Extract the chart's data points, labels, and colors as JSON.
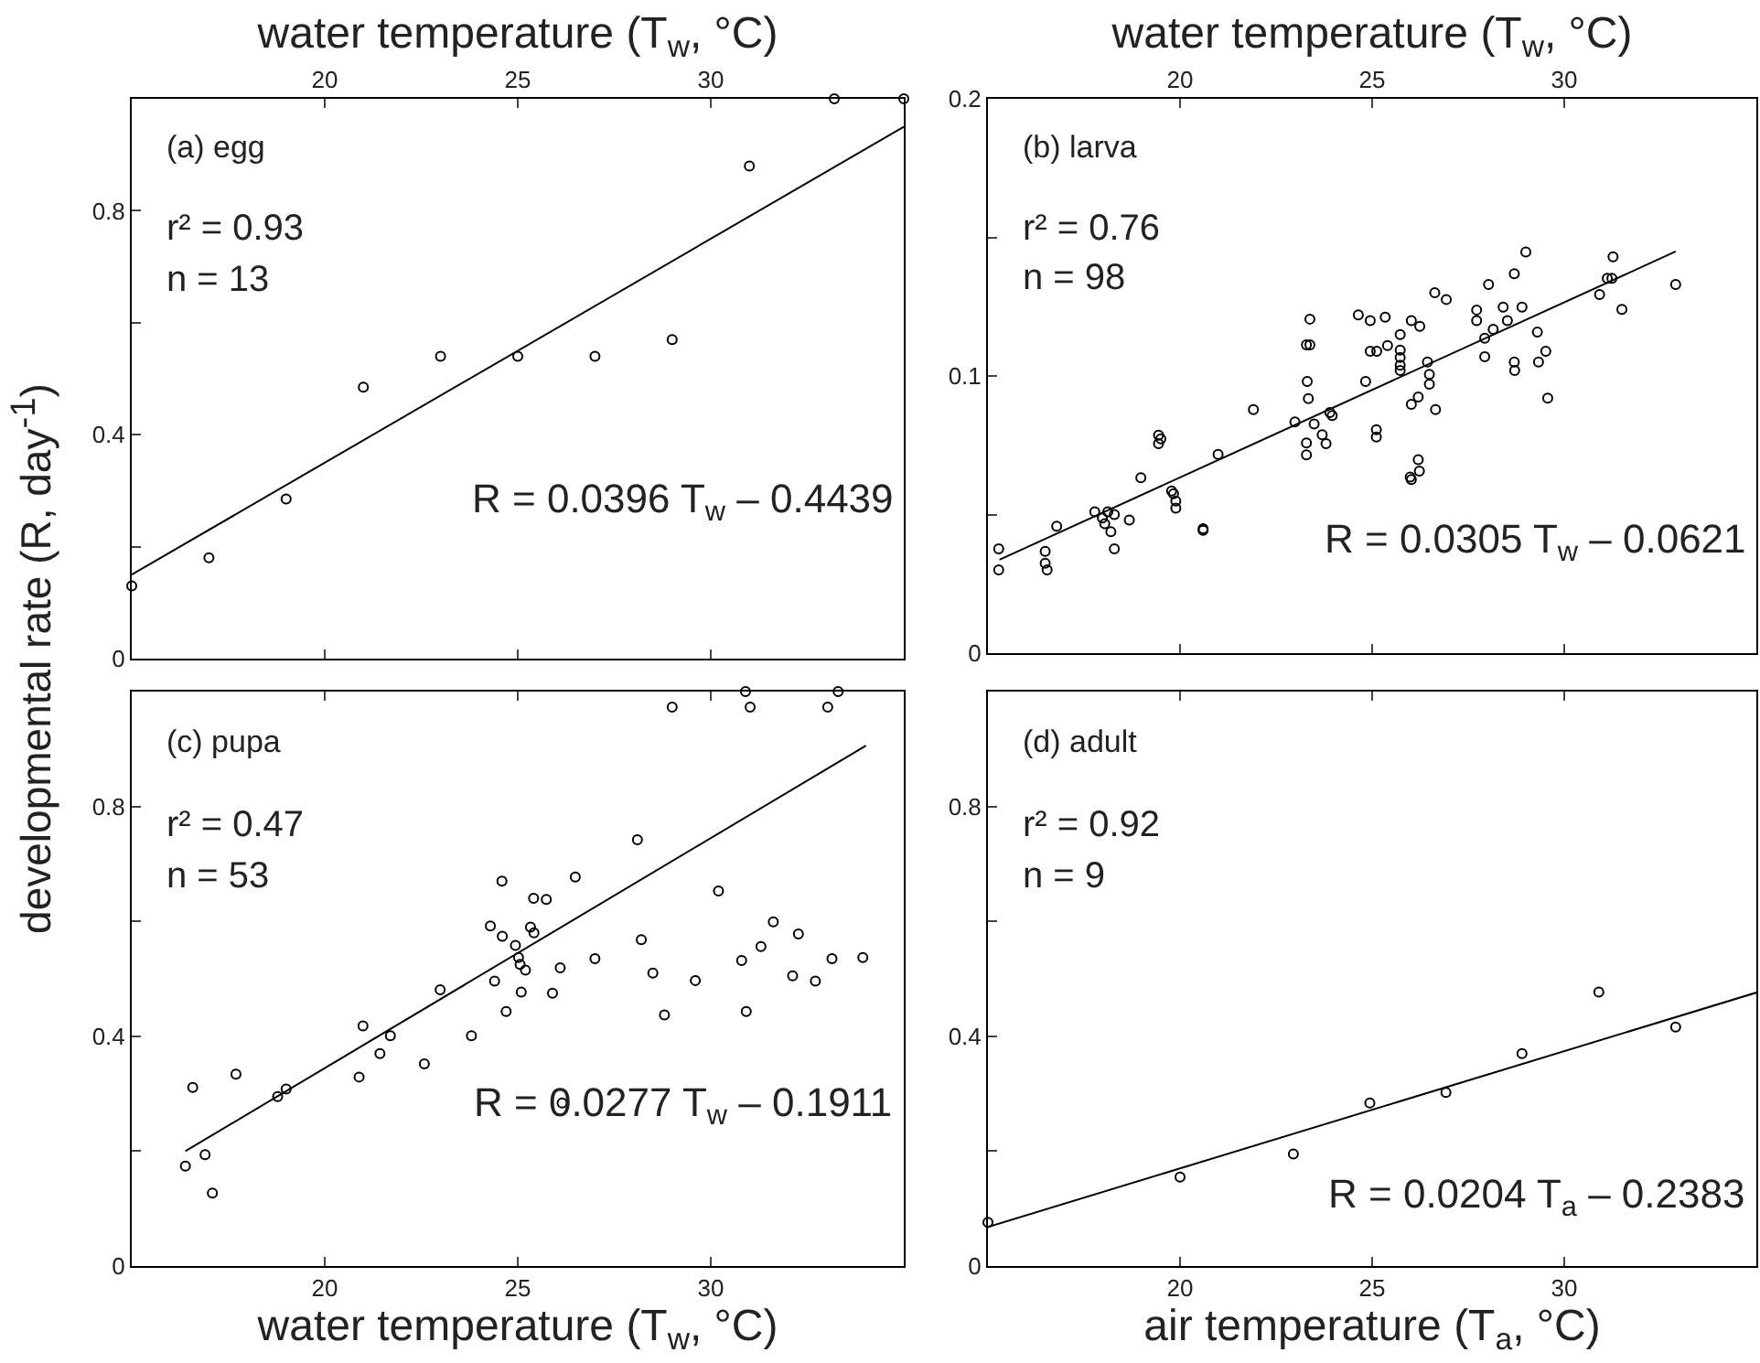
{
  "chart_data": [
    {
      "type": "scatter",
      "line_style": "solid",
      "grid": false,
      "xlabel": "water temperature (T$_{w}$, °C)",
      "ylabel": "developmental rate (R, day$^{-1}$)",
      "xlim": [
        15,
        35
      ],
      "xticks": [
        20,
        25,
        30
      ],
      "ylim": [
        0,
        1
      ],
      "yticks": [
        0,
        {
          "value": 0.2,
          "label": null
        },
        0.4,
        {
          "value": 0.6,
          "label": null
        },
        0.8
      ],
      "annotations": [
        "(a) egg",
        "r² = 0.93",
        "n = 13",
        "R = 0.0396 T$_{w}$ – 0.4439"
      ],
      "series": [
        {
          "type": "scatter",
          "marker": "circle",
          "color": "#000000",
          "x": [
            15,
            17,
            19,
            21,
            23,
            25,
            27,
            29,
            31,
            33.2,
            35
          ],
          "values": [
            0.13,
            0.18,
            0.285,
            0.485,
            0.54,
            0.54,
            0.54,
            0.57,
            0.88,
            1.0,
            1.0
          ]
        },
        {
          "type": "line",
          "color": "#000000",
          "x": [
            15,
            35
          ],
          "values": [
            0.15,
            0.95
          ]
        }
      ]
    },
    {
      "type": "scatter",
      "line_style": "solid",
      "grid": false,
      "xlabel": "water temperature (T$_{w}$, °C)",
      "xlim": [
        15,
        35
      ],
      "xticks": [
        20,
        25,
        30
      ],
      "ylim": [
        0,
        0.2
      ],
      "yticks": [
        0,
        {
          "value": 0.05,
          "label": null
        },
        0.1,
        {
          "value": 0.15,
          "label": null
        },
        0.2
      ],
      "annotations": [
        "(b) larva",
        "r² = 0.76",
        "n = 98",
        "R = 0.0305 T$_{w}$ – 0.0621"
      ],
      "series": [
        {
          "type": "scatter",
          "marker": "circle",
          "color": "#000000",
          "x": [
            15.28,
            15.28,
            16.49,
            16.49,
            16.54,
            16.79,
            17.78,
            17.98,
            18.04,
            18.12,
            18.2,
            18.29,
            18.29,
            18.68,
            18.98,
            19.44,
            19.44,
            19.5,
            19.78,
            19.89,
            19.89,
            19.83,
            20.6,
            20.6,
            20.99,
            21.91,
            22.99,
            23.29,
            23.38,
            23.38,
            23.31,
            23.34,
            23.29,
            23.29,
            23.49,
            23.7,
            23.8,
            23.9,
            23.96,
            24.64,
            24.83,
            24.95,
            24.95,
            25.12,
            25.11,
            25.11,
            25.34,
            25.4,
            25.73,
            25.73,
            25.73,
            25.73,
            25.73,
            26.02,
            26.02,
            25.99,
            26.02,
            26.2,
            26.2,
            26.23,
            26.24,
            26.44,
            26.49,
            26.49,
            26.65,
            26.63,
            26.93,
            27.72,
            27.72,
            27.93,
            27.93,
            28.03,
            28.15,
            28.41,
            28.52,
            28.7,
            28.7,
            28.71,
            28.9,
            29.0,
            29.3,
            29.33,
            29.52,
            29.57,
            30.92,
            31.12,
            31.24,
            31.27,
            31.5,
            32.9
          ],
          "values": [
            0.0376,
            0.03,
            0.0367,
            0.0324,
            0.03,
            0.0458,
            0.051,
            0.0488,
            0.0467,
            0.051,
            0.0438,
            0.05,
            0.0376,
            0.048,
            0.0633,
            0.0786,
            0.0756,
            0.0773,
            0.0585,
            0.0549,
            0.0523,
            0.0575,
            0.0449,
            0.0443,
            0.0717,
            0.0879,
            0.0834,
            0.1112,
            0.1112,
            0.1205,
            0.098,
            0.0918,
            0.0758,
            0.0715,
            0.0827,
            0.0788,
            0.0756,
            0.0868,
            0.0857,
            0.122,
            0.098,
            0.12,
            0.1089,
            0.1089,
            0.0806,
            0.078,
            0.1212,
            0.111,
            0.1149,
            0.1093,
            0.1067,
            0.1039,
            0.102,
            0.12,
            0.0898,
            0.0635,
            0.0626,
            0.0924,
            0.0698,
            0.0657,
            0.1179,
            0.105,
            0.1006,
            0.097,
            0.0879,
            0.13,
            0.1276,
            0.1238,
            0.12,
            0.1136,
            0.1069,
            0.133,
            0.1168,
            0.1248,
            0.12,
            0.1369,
            0.105,
            0.102,
            0.1248,
            0.1447,
            0.1158,
            0.105,
            0.1089,
            0.092,
            0.1294,
            0.1352,
            0.1352,
            0.143,
            0.124,
            0.133
          ]
        },
        {
          "type": "line",
          "color": "#000000",
          "x": [
            15.3,
            32.9
          ],
          "values": [
            0.0337,
            0.1449
          ]
        }
      ]
    },
    {
      "type": "scatter",
      "line_style": "solid",
      "grid": false,
      "xlabel": "water temperature (T$_{w}$, °C)",
      "xlim": [
        15,
        35
      ],
      "xticks": [
        20,
        25,
        30
      ],
      "ylim": [
        0,
        1
      ],
      "yticks": [
        0,
        {
          "value": 0.2,
          "label": null
        },
        0.4,
        {
          "value": 0.6,
          "label": null
        },
        0.8
      ],
      "annotations": [
        "(c) pupa",
        "r² = 0.47",
        "n = 53",
        "R = 0.0277 T$_{w}$ – 0.1911"
      ],
      "series": [
        {
          "type": "scatter",
          "marker": "circle",
          "color": "#000000",
          "x": [
            16.39,
            16.58,
            16.9,
            17.09,
            17.7,
            18.78,
            19.0,
            20.89,
            20.99,
            21.43,
            21.7,
            22.58,
            22.99,
            23.8,
            24.29,
            24.4,
            24.59,
            24.6,
            24.7,
            24.94,
            25.02,
            25.06,
            25.09,
            25.2,
            25.33,
            25.41,
            25.42,
            25.74,
            25.9,
            26.1,
            26.15,
            26.49,
            27.0,
            28.1,
            28.2,
            28.5,
            28.8,
            29.0,
            29.6,
            30.2,
            30.8,
            30.9,
            30.92,
            31.02,
            31.3,
            31.62,
            32.12,
            32.27,
            32.71,
            33.03,
            33.14,
            33.3,
            33.94
          ],
          "values": [
            0.174,
            0.311,
            0.194,
            0.127,
            0.334,
            0.295,
            0.308,
            0.329,
            0.418,
            0.37,
            0.401,
            0.352,
            0.481,
            0.401,
            0.592,
            0.496,
            0.67,
            0.574,
            0.443,
            0.558,
            0.537,
            0.525,
            0.477,
            0.515,
            0.59,
            0.64,
            0.58,
            0.638,
            0.475,
            0.519,
            0.284,
            0.677,
            0.535,
            0.742,
            0.568,
            0.51,
            0.437,
            0.973,
            0.497,
            0.653,
            0.532,
            1.0,
            0.443,
            0.973,
            0.556,
            0.599,
            0.505,
            0.578,
            0.496,
            0.973,
            0.535,
            1.0,
            0.537
          ]
        },
        {
          "type": "line",
          "color": "#000000",
          "x": [
            16.39,
            34.02
          ],
          "values": [
            0.2,
            0.906
          ]
        }
      ]
    },
    {
      "type": "scatter",
      "line_style": "solid",
      "grid": false,
      "xlabel": "air temperature (T$_{a}$, °C)",
      "xlim": [
        15,
        35
      ],
      "xticks": [
        20,
        25,
        30
      ],
      "ylim": [
        0,
        1
      ],
      "yticks": [
        0,
        {
          "value": 0.2,
          "label": null
        },
        0.4,
        {
          "value": 0.6,
          "label": null
        },
        0.8
      ],
      "annotations": [
        "(d) adult",
        "r² = 0.92",
        "n = 9",
        "R = 0.0204 T$_{a}$ – 0.2383"
      ],
      "series": [
        {
          "type": "scatter",
          "marker": "circle",
          "color": "#000000",
          "x": [
            15.0,
            20.0,
            22.95,
            24.94,
            26.92,
            28.9,
            30.9,
            32.9
          ],
          "values": [
            0.076,
            0.155,
            0.195,
            0.284,
            0.302,
            0.37,
            0.477,
            0.416
          ]
        },
        {
          "type": "line",
          "color": "#000000",
          "x": [
            15,
            35
          ],
          "values": [
            0.068,
            0.476
          ]
        }
      ]
    }
  ]
}
